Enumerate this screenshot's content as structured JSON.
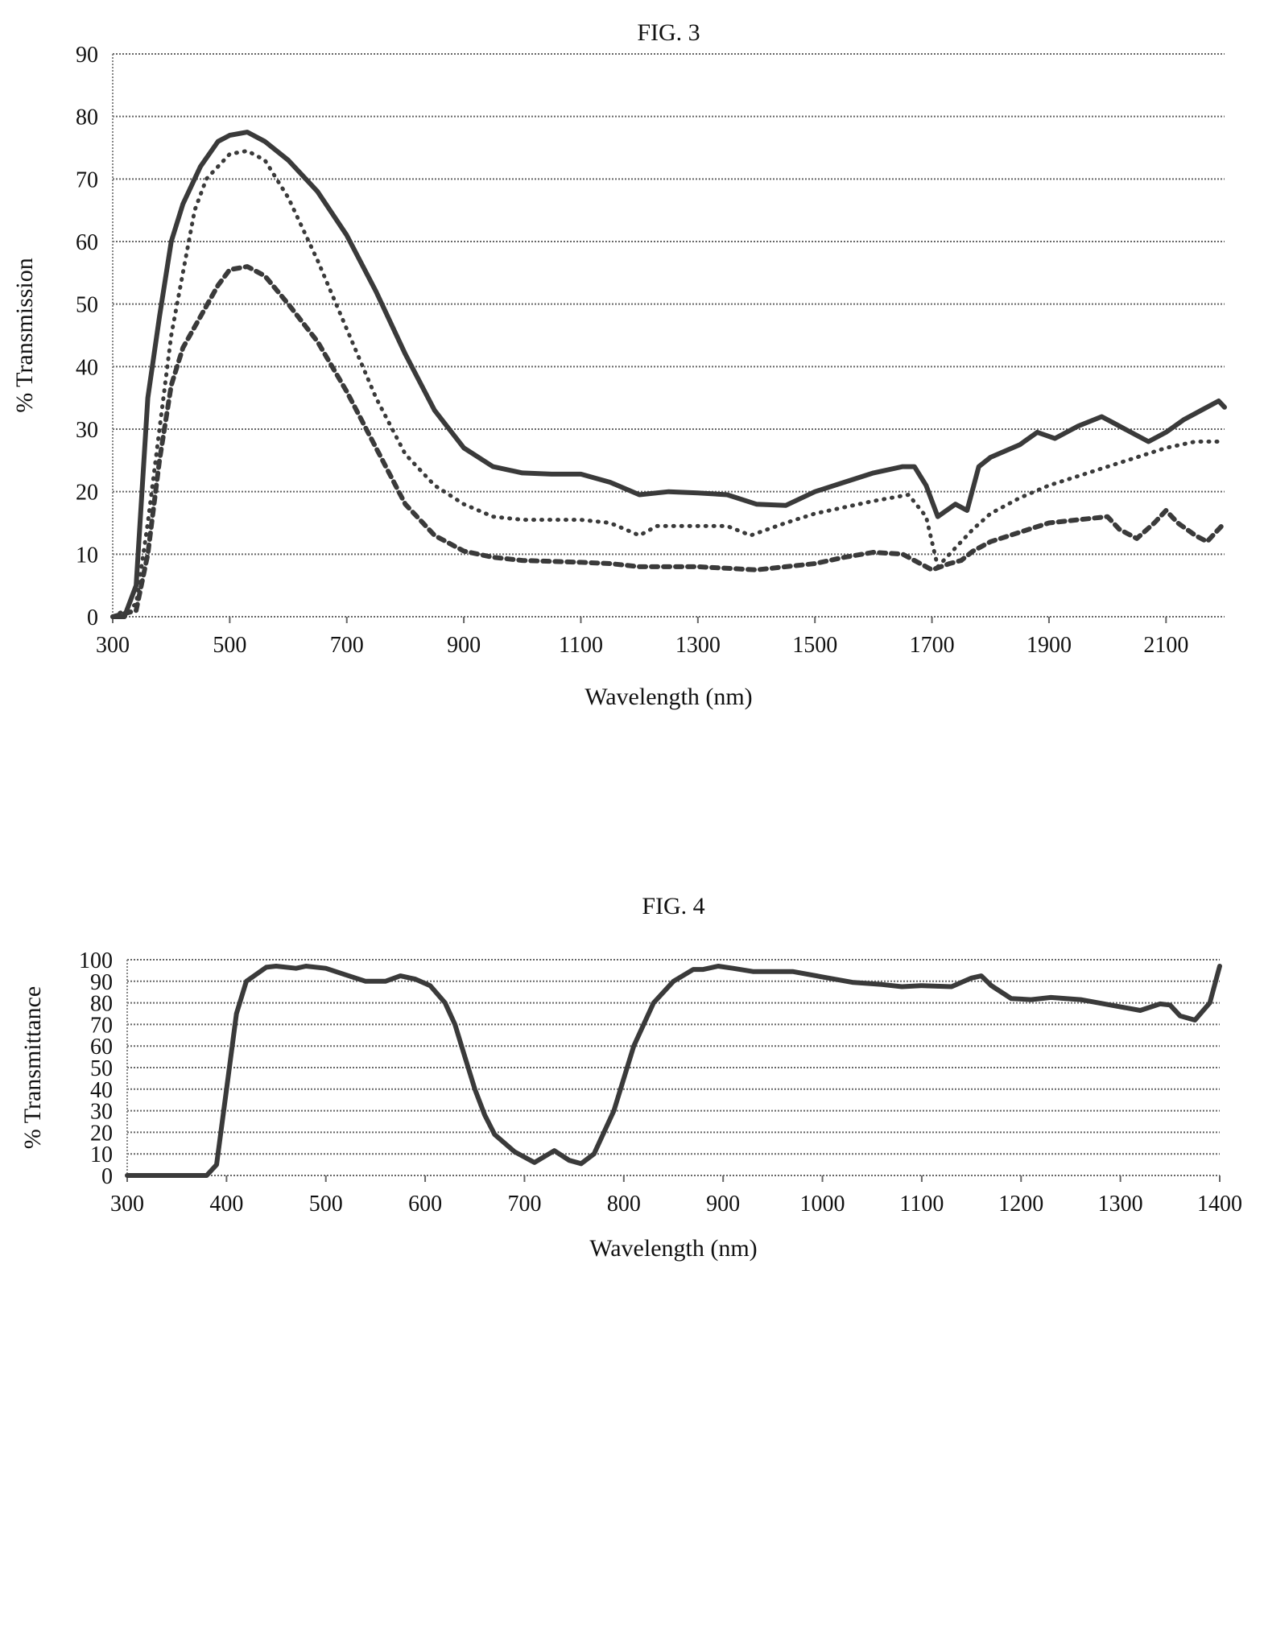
{
  "chart_data": [
    {
      "type": "line",
      "title": "FIG. 3",
      "xlabel": "Wavelength (nm)",
      "ylabel": "% Transmission",
      "xlim": [
        300,
        2200
      ],
      "ylim": [
        0,
        90
      ],
      "xticks": [
        300,
        500,
        700,
        900,
        1100,
        1300,
        1500,
        1700,
        1900,
        2100
      ],
      "yticks": [
        0,
        10,
        20,
        30,
        40,
        50,
        60,
        70,
        80,
        90
      ],
      "grid": true,
      "series": [
        {
          "name": "solid",
          "style": "solid",
          "points": [
            [
              300,
              0
            ],
            [
              320,
              0
            ],
            [
              340,
              5
            ],
            [
              360,
              35
            ],
            [
              380,
              48
            ],
            [
              400,
              60
            ],
            [
              420,
              66
            ],
            [
              450,
              72
            ],
            [
              480,
              76
            ],
            [
              500,
              77
            ],
            [
              530,
              77.5
            ],
            [
              560,
              76
            ],
            [
              600,
              73
            ],
            [
              650,
              68
            ],
            [
              700,
              61
            ],
            [
              750,
              52
            ],
            [
              800,
              42
            ],
            [
              850,
              33
            ],
            [
              900,
              27
            ],
            [
              950,
              24
            ],
            [
              1000,
              23
            ],
            [
              1050,
              22.8
            ],
            [
              1100,
              22.8
            ],
            [
              1150,
              21.5
            ],
            [
              1200,
              19.5
            ],
            [
              1250,
              20
            ],
            [
              1300,
              19.8
            ],
            [
              1350,
              19.5
            ],
            [
              1400,
              18
            ],
            [
              1450,
              17.8
            ],
            [
              1500,
              20
            ],
            [
              1550,
              21.5
            ],
            [
              1600,
              23
            ],
            [
              1650,
              24
            ],
            [
              1670,
              24
            ],
            [
              1690,
              21
            ],
            [
              1710,
              16
            ],
            [
              1740,
              18
            ],
            [
              1760,
              17
            ],
            [
              1780,
              24
            ],
            [
              1800,
              25.5
            ],
            [
              1850,
              27.5
            ],
            [
              1880,
              29.5
            ],
            [
              1910,
              28.5
            ],
            [
              1950,
              30.5
            ],
            [
              1990,
              32
            ],
            [
              2010,
              31
            ],
            [
              2040,
              29.5
            ],
            [
              2070,
              28
            ],
            [
              2100,
              29.5
            ],
            [
              2130,
              31.5
            ],
            [
              2160,
              33
            ],
            [
              2190,
              34.5
            ],
            [
              2200,
              33.5
            ]
          ]
        },
        {
          "name": "dotted",
          "style": "dotted",
          "points": [
            [
              300,
              0
            ],
            [
              340,
              2
            ],
            [
              360,
              15
            ],
            [
              380,
              30
            ],
            [
              400,
              45
            ],
            [
              420,
              55
            ],
            [
              440,
              65
            ],
            [
              460,
              70
            ],
            [
              500,
              74
            ],
            [
              530,
              74.5
            ],
            [
              560,
              73
            ],
            [
              600,
              67
            ],
            [
              650,
              57
            ],
            [
              700,
              46
            ],
            [
              750,
              35
            ],
            [
              800,
              26
            ],
            [
              850,
              21
            ],
            [
              900,
              18
            ],
            [
              950,
              16
            ],
            [
              1000,
              15.5
            ],
            [
              1100,
              15.5
            ],
            [
              1150,
              15
            ],
            [
              1200,
              13
            ],
            [
              1230,
              14.5
            ],
            [
              1300,
              14.5
            ],
            [
              1350,
              14.5
            ],
            [
              1390,
              13
            ],
            [
              1450,
              15
            ],
            [
              1500,
              16.5
            ],
            [
              1550,
              17.5
            ],
            [
              1600,
              18.5
            ],
            [
              1660,
              19.5
            ],
            [
              1690,
              16
            ],
            [
              1710,
              8
            ],
            [
              1730,
              10
            ],
            [
              1750,
              12
            ],
            [
              1770,
              14
            ],
            [
              1800,
              16.5
            ],
            [
              1850,
              19
            ],
            [
              1900,
              21
            ],
            [
              1950,
              22.5
            ],
            [
              2000,
              24
            ],
            [
              2050,
              25.5
            ],
            [
              2100,
              27
            ],
            [
              2150,
              28
            ],
            [
              2200,
              28
            ]
          ]
        },
        {
          "name": "dashed",
          "style": "dashed",
          "points": [
            [
              300,
              0
            ],
            [
              340,
              1
            ],
            [
              360,
              10
            ],
            [
              380,
              25
            ],
            [
              400,
              37
            ],
            [
              420,
              43
            ],
            [
              450,
              48
            ],
            [
              480,
              53
            ],
            [
              500,
              55.5
            ],
            [
              530,
              56
            ],
            [
              560,
              54.5
            ],
            [
              600,
              50
            ],
            [
              650,
              44
            ],
            [
              700,
              36
            ],
            [
              750,
              27
            ],
            [
              800,
              18
            ],
            [
              850,
              13
            ],
            [
              900,
              10.5
            ],
            [
              950,
              9.5
            ],
            [
              1000,
              9
            ],
            [
              1100,
              8.7
            ],
            [
              1150,
              8.5
            ],
            [
              1200,
              8
            ],
            [
              1300,
              8
            ],
            [
              1400,
              7.5
            ],
            [
              1450,
              8
            ],
            [
              1500,
              8.5
            ],
            [
              1550,
              9.5
            ],
            [
              1600,
              10.3
            ],
            [
              1650,
              10
            ],
            [
              1680,
              8.5
            ],
            [
              1700,
              7.5
            ],
            [
              1730,
              8.5
            ],
            [
              1750,
              9
            ],
            [
              1770,
              10.5
            ],
            [
              1800,
              12
            ],
            [
              1850,
              13.5
            ],
            [
              1900,
              15
            ],
            [
              1950,
              15.5
            ],
            [
              2000,
              16
            ],
            [
              2020,
              14
            ],
            [
              2050,
              12.5
            ],
            [
              2080,
              15
            ],
            [
              2100,
              17
            ],
            [
              2120,
              15
            ],
            [
              2150,
              13
            ],
            [
              2170,
              12
            ],
            [
              2200,
              15
            ]
          ]
        }
      ]
    },
    {
      "type": "line",
      "title": "FIG. 4",
      "xlabel": "Wavelength (nm)",
      "ylabel": "% Transmittance",
      "xlim": [
        300,
        1400
      ],
      "ylim": [
        0,
        100
      ],
      "xticks": [
        300,
        400,
        500,
        600,
        700,
        800,
        900,
        1000,
        1100,
        1200,
        1300,
        1400
      ],
      "yticks": [
        0,
        10,
        20,
        30,
        40,
        50,
        60,
        70,
        80,
        90,
        100
      ],
      "grid": true,
      "series": [
        {
          "name": "transmittance",
          "style": "solid",
          "points": [
            [
              300,
              0
            ],
            [
              380,
              0
            ],
            [
              390,
              5
            ],
            [
              400,
              40
            ],
            [
              410,
              75
            ],
            [
              420,
              90
            ],
            [
              440,
              96.5
            ],
            [
              450,
              97
            ],
            [
              470,
              96
            ],
            [
              480,
              97
            ],
            [
              500,
              96
            ],
            [
              520,
              93
            ],
            [
              540,
              90
            ],
            [
              560,
              90
            ],
            [
              575,
              92.5
            ],
            [
              590,
              91
            ],
            [
              605,
              88
            ],
            [
              620,
              80
            ],
            [
              630,
              70
            ],
            [
              640,
              55
            ],
            [
              650,
              40
            ],
            [
              660,
              28
            ],
            [
              670,
              19
            ],
            [
              690,
              11
            ],
            [
              710,
              6
            ],
            [
              730,
              11.5
            ],
            [
              745,
              7
            ],
            [
              757,
              5.5
            ],
            [
              770,
              10
            ],
            [
              790,
              30
            ],
            [
              810,
              60
            ],
            [
              830,
              80
            ],
            [
              850,
              90
            ],
            [
              870,
              95.5
            ],
            [
              880,
              95.5
            ],
            [
              895,
              97
            ],
            [
              910,
              96
            ],
            [
              930,
              94.5
            ],
            [
              950,
              94.5
            ],
            [
              970,
              94.5
            ],
            [
              1000,
              92
            ],
            [
              1030,
              89.5
            ],
            [
              1060,
              88.5
            ],
            [
              1080,
              87.5
            ],
            [
              1100,
              88
            ],
            [
              1130,
              87.5
            ],
            [
              1150,
              91.5
            ],
            [
              1160,
              92.5
            ],
            [
              1170,
              88
            ],
            [
              1190,
              82
            ],
            [
              1210,
              81.5
            ],
            [
              1230,
              82.5
            ],
            [
              1260,
              81.5
            ],
            [
              1290,
              79
            ],
            [
              1320,
              76.5
            ],
            [
              1340,
              79.5
            ],
            [
              1350,
              79
            ],
            [
              1360,
              74
            ],
            [
              1375,
              72
            ],
            [
              1390,
              80
            ],
            [
              1400,
              97
            ]
          ]
        }
      ]
    }
  ]
}
